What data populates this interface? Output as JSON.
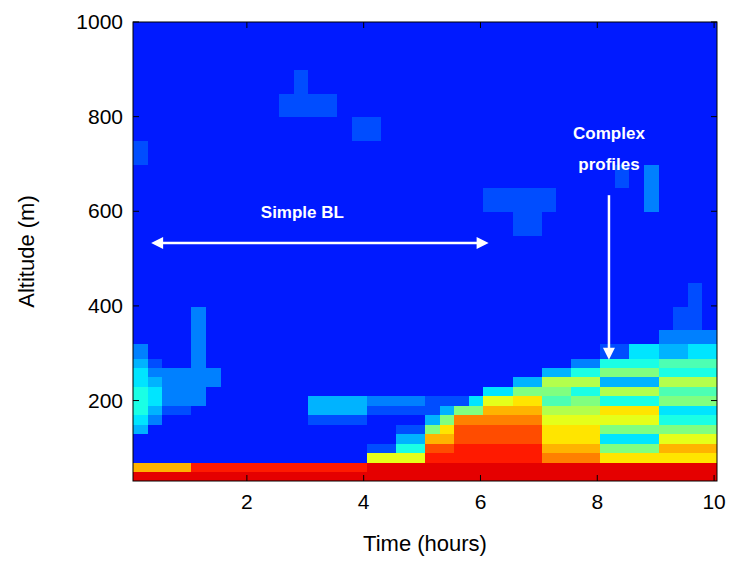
{
  "chart_data": {
    "type": "heatmap",
    "x_label": "Time (hours)",
    "y_label": "Altitude (m)",
    "xlim": [
      0.05,
      10.05
    ],
    "ylim": [
      30,
      1000
    ],
    "xticks": [
      2,
      4,
      6,
      8,
      10
    ],
    "yticks": [
      200,
      400,
      600,
      800,
      1000
    ],
    "zlim": [
      0,
      10
    ],
    "cell_y_edges": [
      30,
      50,
      70,
      90,
      110,
      130,
      150,
      170,
      190,
      210,
      230,
      250,
      270,
      290,
      320,
      350,
      400,
      450,
      500,
      550,
      600,
      650,
      700,
      750,
      800,
      850,
      900,
      950,
      1000
    ],
    "cells": [
      [
        9,
        9,
        9,
        9,
        9,
        9,
        9,
        9,
        9,
        9,
        9,
        9,
        9,
        9,
        9,
        9,
        9,
        9,
        9,
        9,
        9,
        9,
        9,
        9,
        9,
        9,
        9,
        9,
        9,
        9,
        9,
        9,
        9,
        9,
        9,
        9,
        9,
        9,
        9,
        9
      ],
      [
        7,
        7,
        7,
        7,
        8.5,
        8.5,
        8.5,
        8.5,
        8.5,
        8.5,
        8.5,
        8.5,
        8.5,
        8.5,
        8.5,
        8.5,
        9,
        9,
        9,
        9,
        9,
        9,
        9,
        9,
        9,
        9,
        9,
        9,
        9,
        9,
        9,
        9,
        9,
        9,
        9,
        9,
        9,
        9,
        9,
        9
      ],
      [
        1.5,
        1.5,
        1.5,
        1.5,
        1.5,
        1.5,
        1.5,
        1.5,
        1.5,
        1.5,
        1.5,
        1.5,
        1.5,
        1.5,
        1.5,
        1.5,
        6,
        6,
        6,
        6,
        8.5,
        8.5,
        8.5,
        8.5,
        8.5,
        8.5,
        8.5,
        8.5,
        7.5,
        7.5,
        7.5,
        7.5,
        6.5,
        6.5,
        6.5,
        6.5,
        6.5,
        6.5,
        6.5,
        6.5
      ],
      [
        1.5,
        1.5,
        1.5,
        1.5,
        1.5,
        1.5,
        1.5,
        1.5,
        1.5,
        1.5,
        1.5,
        1.5,
        1.5,
        1.5,
        1.5,
        1.5,
        2,
        2,
        4,
        4,
        8,
        8,
        8.5,
        8.5,
        8.5,
        8.5,
        8.5,
        8.5,
        7,
        7,
        7,
        7,
        5,
        5,
        5,
        5,
        7,
        7,
        7,
        7
      ],
      [
        1.5,
        1.5,
        1.5,
        1.5,
        1.5,
        1.5,
        1.5,
        1.5,
        1.5,
        1.5,
        1.5,
        1.5,
        1.5,
        1.5,
        1.5,
        1.5,
        1.5,
        1.5,
        3,
        3,
        7,
        7,
        8,
        8,
        8,
        8,
        8,
        8,
        6.5,
        6.5,
        6.5,
        6.5,
        3.5,
        3.5,
        3.5,
        3.5,
        6,
        6,
        6,
        6
      ],
      [
        3,
        1.5,
        1.5,
        1.5,
        1.5,
        1.5,
        1.5,
        1.5,
        1.5,
        1.5,
        1.5,
        1.5,
        1.5,
        1.5,
        1.5,
        1.5,
        1.5,
        1.5,
        2,
        2,
        5,
        6.5,
        8,
        8,
        8,
        8,
        8,
        8,
        6.5,
        6.5,
        6.5,
        6.5,
        5,
        5,
        5,
        5,
        5,
        5,
        5,
        5
      ],
      [
        3.5,
        2.5,
        1.5,
        1.5,
        1.5,
        1.5,
        1.5,
        1.5,
        1.5,
        1.5,
        1.5,
        1.5,
        2,
        2,
        2,
        2,
        1.5,
        1.5,
        1.5,
        1.5,
        3,
        5,
        7.5,
        7.5,
        7.5,
        7.5,
        7.5,
        7.5,
        6,
        6,
        6,
        6,
        6,
        6,
        6,
        6,
        4,
        4,
        4,
        4
      ],
      [
        4,
        3,
        2,
        2,
        1.5,
        1.5,
        1.5,
        1.5,
        1.5,
        1.5,
        1.5,
        1.5,
        3,
        3,
        3,
        3,
        2,
        2,
        2,
        2,
        2,
        3,
        5,
        5,
        7,
        7,
        7,
        7,
        5.5,
        5.5,
        5.5,
        5.5,
        6.5,
        6.5,
        6.5,
        6.5,
        3.5,
        3.5,
        3.5,
        3.5
      ],
      [
        4,
        3.5,
        2.5,
        2.5,
        2.5,
        1.5,
        1.5,
        1.5,
        1.5,
        1.5,
        1.5,
        1.5,
        3,
        3,
        3,
        3,
        2.5,
        2.5,
        2.5,
        2.5,
        2,
        2,
        2,
        3.5,
        6,
        6,
        6.5,
        6.5,
        4.5,
        4.5,
        5,
        5,
        4,
        4,
        4,
        4,
        5,
        5,
        5,
        5
      ],
      [
        4,
        3.5,
        2.5,
        2.5,
        2.5,
        1.5,
        1.5,
        1.5,
        1.5,
        1.5,
        1.5,
        1.5,
        1.5,
        1.5,
        1.5,
        1.5,
        1.5,
        1.5,
        1.5,
        1.5,
        1.5,
        1.5,
        1.5,
        1.5,
        3.5,
        3.5,
        5,
        5,
        5,
        5,
        4,
        4,
        5.5,
        5.5,
        5.5,
        5.5,
        4.5,
        4.5,
        4.5,
        4.5
      ],
      [
        3.5,
        3,
        2.5,
        2.5,
        2.5,
        2.5,
        1.5,
        1.5,
        1.5,
        1.5,
        1.5,
        1.5,
        1.5,
        1.5,
        1.5,
        1.5,
        1.5,
        1.5,
        1.5,
        1.5,
        1.5,
        1.5,
        1.5,
        1.5,
        1.5,
        1.5,
        3,
        3,
        5.5,
        5.5,
        5.5,
        5.5,
        3,
        3,
        3,
        3,
        5.5,
        5.5,
        5.5,
        5.5
      ],
      [
        3.5,
        2.5,
        2.5,
        2.5,
        2.5,
        2.5,
        1.5,
        1.5,
        1.5,
        1.5,
        1.5,
        1.5,
        1.5,
        1.5,
        1.5,
        1.5,
        1.5,
        1.5,
        1.5,
        1.5,
        1.5,
        1.5,
        1.5,
        1.5,
        1.5,
        1.5,
        1.5,
        1.5,
        3,
        3,
        4,
        4,
        5,
        5,
        5,
        5,
        4,
        4,
        4,
        4
      ],
      [
        3,
        2,
        1.5,
        1.5,
        2.5,
        1.5,
        1.5,
        1.5,
        1.5,
        1.5,
        1.5,
        1.5,
        1.5,
        1.5,
        1.5,
        1.5,
        1.5,
        1.5,
        1.5,
        1.5,
        1.5,
        1.5,
        1.5,
        1.5,
        1.5,
        1.5,
        1.5,
        1.5,
        1.5,
        1.5,
        2.5,
        2.5,
        4,
        4,
        4,
        4,
        4.5,
        4.5,
        4.5,
        4.5
      ],
      [
        2.5,
        1.5,
        1.5,
        1.5,
        2.5,
        1.5,
        1.5,
        1.5,
        1.5,
        1.5,
        1.5,
        1.5,
        1.5,
        1.5,
        1.5,
        1.5,
        1.5,
        1.5,
        1.5,
        1.5,
        1.5,
        1.5,
        1.5,
        1.5,
        1.5,
        1.5,
        1.5,
        1.5,
        1.5,
        1.5,
        1.5,
        1.5,
        2,
        2,
        3.5,
        3.5,
        3,
        3,
        3.5,
        3.5
      ],
      [
        1.5,
        1.5,
        1.5,
        1.5,
        2.5,
        1.5,
        1.5,
        1.5,
        1.5,
        1.5,
        1.5,
        1.5,
        1.5,
        1.5,
        1.5,
        1.5,
        1.5,
        1.5,
        1.5,
        1.5,
        1.5,
        1.5,
        1.5,
        1.5,
        1.5,
        1.5,
        1.5,
        1.5,
        1.5,
        1.5,
        1.5,
        1.5,
        1.5,
        1.5,
        1.5,
        1.5,
        2.5,
        2.5,
        2.5,
        2.5
      ],
      [
        1.5,
        1.5,
        1.5,
        1.5,
        2.5,
        1.5,
        1.5,
        1.5,
        1.5,
        1.5,
        1.5,
        1.5,
        1.5,
        1.5,
        1.5,
        1.5,
        1.5,
        1.5,
        1.5,
        1.5,
        1.5,
        1.5,
        1.5,
        1.5,
        1.5,
        1.5,
        1.5,
        1.5,
        1.5,
        1.5,
        1.5,
        1.5,
        1.5,
        1.5,
        1.5,
        1.5,
        1.5,
        2,
        2,
        1.5
      ],
      [
        1.5,
        1.5,
        1.5,
        1.5,
        1.5,
        1.5,
        1.5,
        1.5,
        1.5,
        1.5,
        1.5,
        1.5,
        1.5,
        1.5,
        1.5,
        1.5,
        1.5,
        1.5,
        1.5,
        1.5,
        1.5,
        1.5,
        1.5,
        1.5,
        1.5,
        1.5,
        1.5,
        1.5,
        1.5,
        1.5,
        1.5,
        1.5,
        1.5,
        1.5,
        1.5,
        1.5,
        1.5,
        1.5,
        2,
        1.5
      ],
      [
        1.5,
        1.5,
        1.5,
        1.5,
        1.5,
        1.5,
        1.5,
        1.5,
        1.5,
        1.5,
        1.5,
        1.5,
        1.5,
        1.5,
        1.5,
        1.5,
        1.5,
        1.5,
        1.5,
        1.5,
        1.5,
        1.5,
        1.5,
        1.5,
        1.5,
        1.5,
        1.5,
        1.5,
        1.5,
        1.5,
        1.5,
        1.5,
        1.5,
        1.5,
        1.5,
        1.5,
        1.5,
        1.5,
        1.5,
        1.5
      ],
      [
        1.5,
        1.5,
        1.5,
        1.5,
        1.5,
        1.5,
        1.5,
        1.5,
        1.5,
        1.5,
        1.5,
        1.5,
        1.5,
        1.5,
        1.5,
        1.5,
        1.5,
        1.5,
        1.5,
        1.5,
        1.5,
        1.5,
        1.5,
        1.5,
        1.5,
        1.5,
        1.5,
        1.5,
        1.5,
        1.5,
        1.5,
        1.5,
        1.5,
        1.5,
        1.5,
        1.5,
        1.5,
        1.5,
        1.5,
        1.5
      ],
      [
        1.5,
        1.5,
        1.5,
        1.5,
        1.5,
        1.5,
        1.5,
        1.5,
        1.5,
        1.5,
        1.5,
        1.5,
        1.5,
        1.5,
        1.5,
        1.5,
        1.5,
        1.5,
        1.5,
        1.5,
        1.5,
        1.5,
        1.5,
        1.5,
        1.5,
        1.5,
        2,
        2,
        1.5,
        1.5,
        1.5,
        1.5,
        1.5,
        1.5,
        1.5,
        1.5,
        1.5,
        1.5,
        1.5,
        1.5
      ],
      [
        1.5,
        1.5,
        1.5,
        1.5,
        1.5,
        1.5,
        1.5,
        1.5,
        1.5,
        1.5,
        1.5,
        1.5,
        1.5,
        1.5,
        1.5,
        1.5,
        1.5,
        1.5,
        1.5,
        1.5,
        1.5,
        1.5,
        1.5,
        1.5,
        2,
        2,
        2,
        2,
        2,
        1.5,
        1.5,
        1.5,
        1.5,
        1.5,
        1.5,
        2.5,
        1.5,
        1.5,
        1.5,
        1.5
      ],
      [
        1.5,
        1.5,
        1.5,
        1.5,
        1.5,
        1.5,
        1.5,
        1.5,
        1.5,
        1.5,
        1.5,
        1.5,
        1.5,
        1.5,
        1.5,
        1.5,
        1.5,
        1.5,
        1.5,
        1.5,
        1.5,
        1.5,
        1.5,
        1.5,
        1.5,
        1.5,
        1.5,
        1.5,
        1.5,
        1.5,
        1.5,
        1.5,
        1.5,
        2,
        1.5,
        2.5,
        1.5,
        1.5,
        1.5,
        1.5
      ],
      [
        2,
        1.5,
        1.5,
        1.5,
        1.5,
        1.5,
        1.5,
        1.5,
        1.5,
        1.5,
        1.5,
        1.5,
        1.5,
        1.5,
        1.5,
        1.5,
        1.5,
        1.5,
        1.5,
        1.5,
        1.5,
        1.5,
        1.5,
        1.5,
        1.5,
        1.5,
        1.5,
        1.5,
        1.5,
        1.5,
        1.5,
        1.5,
        1.5,
        1.5,
        1.5,
        1.5,
        1.5,
        1.5,
        1.5,
        1.5
      ],
      [
        1.5,
        1.5,
        1.5,
        1.5,
        1.5,
        1.5,
        1.5,
        1.5,
        1.5,
        1.5,
        1.5,
        1.5,
        1.5,
        1.5,
        1.5,
        2,
        2,
        1.5,
        1.5,
        1.5,
        1.5,
        1.5,
        1.5,
        1.5,
        1.5,
        1.5,
        1.5,
        1.5,
        1.5,
        1.5,
        1.5,
        1.5,
        1.5,
        1.5,
        1.5,
        1.5,
        1.5,
        1.5,
        1.5,
        1.5
      ],
      [
        1.5,
        1.5,
        1.5,
        1.5,
        1.5,
        1.5,
        1.5,
        1.5,
        1.5,
        1.5,
        2,
        2,
        2,
        2,
        1.5,
        1.5,
        1.5,
        1.5,
        1.5,
        1.5,
        1.5,
        1.5,
        1.5,
        1.5,
        1.5,
        1.5,
        1.5,
        1.5,
        1.5,
        1.5,
        1.5,
        1.5,
        1.5,
        1.5,
        1.5,
        1.5,
        1.5,
        1.5,
        1.5,
        1.5
      ],
      [
        1.5,
        1.5,
        1.5,
        1.5,
        1.5,
        1.5,
        1.5,
        1.5,
        1.5,
        1.5,
        1.5,
        2,
        1.5,
        1.5,
        1.5,
        1.5,
        1.5,
        1.5,
        1.5,
        1.5,
        1.5,
        1.5,
        1.5,
        1.5,
        1.5,
        1.5,
        1.5,
        1.5,
        1.5,
        1.5,
        1.5,
        1.5,
        1.5,
        1.5,
        1.5,
        1.5,
        1.5,
        1.5,
        1.5,
        1.5
      ],
      [
        1.5,
        1.5,
        1.5,
        1.5,
        1.5,
        1.5,
        1.5,
        1.5,
        1.5,
        1.5,
        1.5,
        1.5,
        1.5,
        1.5,
        1.5,
        1.5,
        1.5,
        1.5,
        1.5,
        1.5,
        1.5,
        1.5,
        1.5,
        1.5,
        1.5,
        1.5,
        1.5,
        1.5,
        1.5,
        1.5,
        1.5,
        1.5,
        1.5,
        1.5,
        1.5,
        1.5,
        1.5,
        1.5,
        1.5,
        1.5
      ],
      [
        1.5,
        1.5,
        1.5,
        1.5,
        1.5,
        1.5,
        1.5,
        1.5,
        1.5,
        1.5,
        1.5,
        1.5,
        1.5,
        1.5,
        1.5,
        1.5,
        1.5,
        1.5,
        1.5,
        1.5,
        1.5,
        1.5,
        1.5,
        1.5,
        1.5,
        1.5,
        1.5,
        1.5,
        1.5,
        1.5,
        1.5,
        1.5,
        1.5,
        1.5,
        1.5,
        1.5,
        1.5,
        1.5,
        1.5,
        1.5
      ]
    ],
    "annotations": [
      {
        "text": "Simple BL",
        "x": 2.95,
        "y": 585
      },
      {
        "text": "Complex profiles",
        "x": 8.2,
        "y": 752
      }
    ],
    "arrows": [
      {
        "x": [
          0.36,
          6.14
        ],
        "y": [
          533,
          533
        ],
        "line_style": "double-arrow"
      },
      {
        "x": [
          8.2,
          8.2
        ],
        "y": [
          634,
          286
        ],
        "line_style": "arrow"
      }
    ]
  }
}
